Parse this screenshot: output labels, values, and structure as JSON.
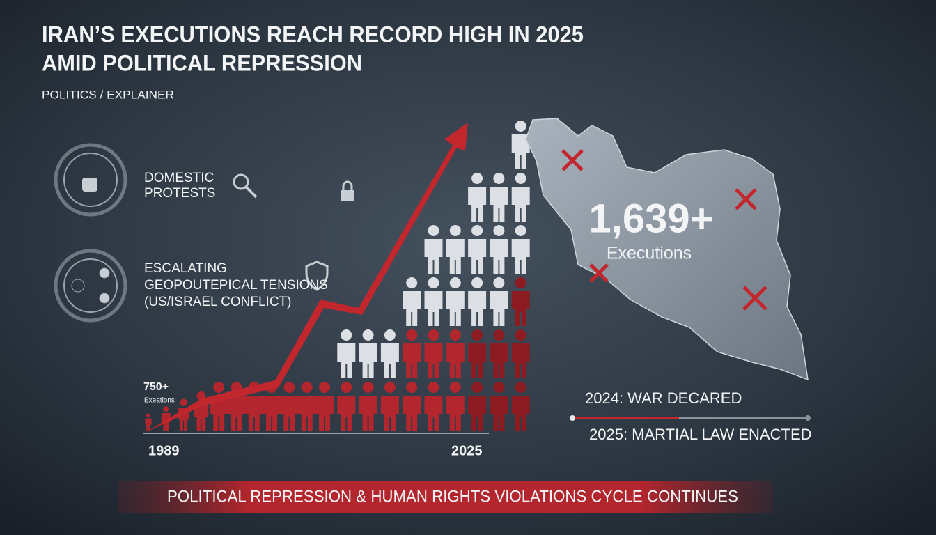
{
  "header": {
    "title": [
      "IRAN’S EXECUTIONS REACH RECORD HIGH IN 2025",
      "AMID POLITICAL REPRESSION"
    ],
    "kicker": "POLITICS / EXPLAINER"
  },
  "factors": [
    {
      "lines": [
        "DOMESTIC",
        "PROTESTS"
      ]
    },
    {
      "lines": [
        "ESCALATING",
        "GEOPOUTEPICAL TENSIONS",
        "(US/ISRAEL CONFLICT)"
      ]
    }
  ],
  "chart": {
    "start_value": "750+",
    "start_label": "Exeations",
    "x_start": "1989",
    "x_end": "2025"
  },
  "map": {
    "figure": "1,639+",
    "figure_label": "Executions"
  },
  "timeline": [
    "2024:  WAR DECARED",
    "2025: MARTIAL LAW ENACTED"
  ],
  "banner": "POLITICAL REPRESSION & HUMAN RIGHTS VIOLATIONS CYCLE CONTINUES"
}
